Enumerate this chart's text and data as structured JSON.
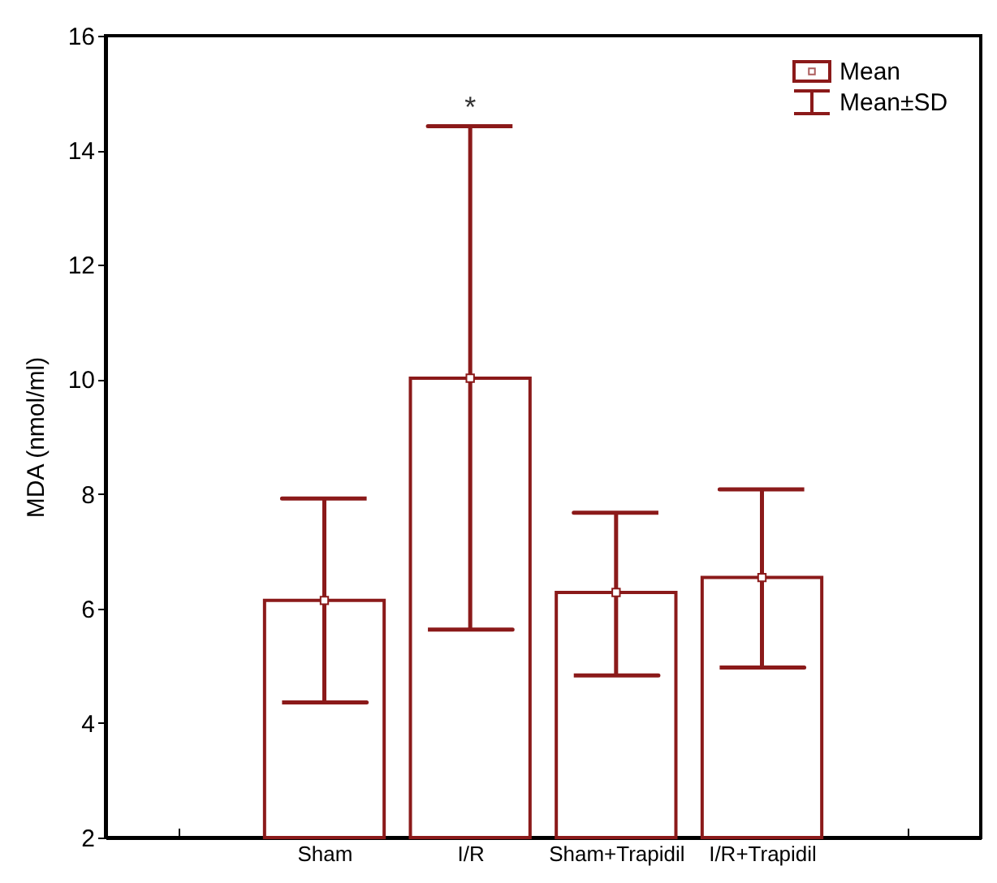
{
  "chart_data": {
    "type": "bar",
    "ylabel": "MDA (nmol/ml)",
    "categories": [
      null,
      "Sham",
      "I/R",
      "Sham+Trapidil",
      "I/R+Trapidil",
      null
    ],
    "series": [
      {
        "color": "#8b1a1a",
        "values": [
          null,
          6.14,
          10.02,
          6.28,
          6.54,
          null
        ],
        "errors": [
          null,
          [
            4.36,
            7.92
          ],
          [
            5.63,
            14.42
          ],
          [
            4.83,
            7.67
          ],
          [
            4.97,
            8.08
          ],
          null
        ]
      },
      {
        "type": "scatter",
        "name": "Mean",
        "color": "#8b1a1a",
        "x": [
          "Sham",
          "I/R",
          "Sham+Trapidil",
          "I/R+Trapidil"
        ],
        "values": [
          6.14,
          10.02,
          6.28,
          6.54
        ]
      }
    ],
    "ylim": [
      2,
      16
    ],
    "yticks": [
      2,
      4,
      6,
      8,
      10,
      12,
      14,
      16
    ],
    "grid": false,
    "legend": "top right",
    "marker": "square",
    "annotations": [
      "*",
      "Mean±SD"
    ]
  }
}
